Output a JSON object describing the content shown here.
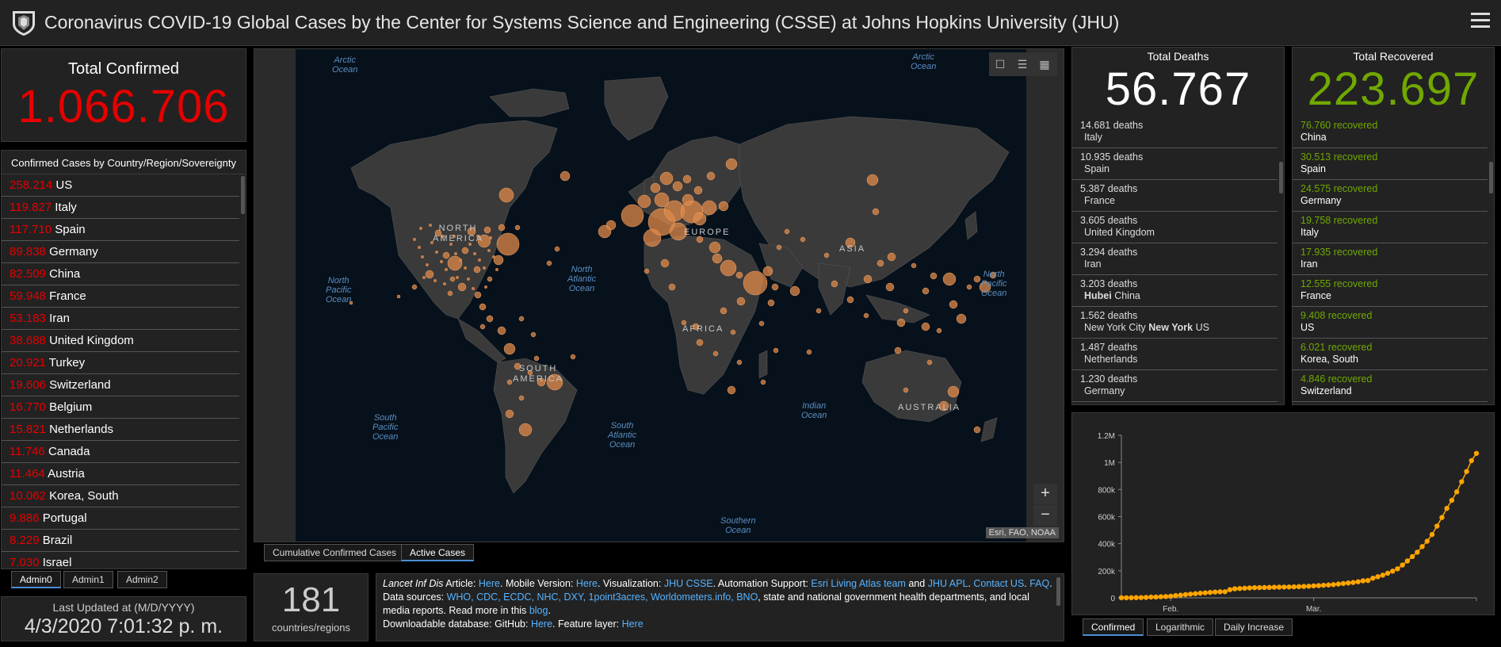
{
  "header": {
    "title": "Coronavirus COVID-19 Global Cases by the Center for Systems Science and Engineering (CSSE) at Johns Hopkins University (JHU)"
  },
  "total_confirmed": {
    "label": "Total Confirmed",
    "value": "1.066.706"
  },
  "confirmed_list": {
    "header": "Confirmed Cases by Country/Region/Sovereignty",
    "rows": [
      {
        "count": "258.214",
        "name": "US"
      },
      {
        "count": "119.827",
        "name": "Italy"
      },
      {
        "count": "117.710",
        "name": "Spain"
      },
      {
        "count": "89.838",
        "name": "Germany"
      },
      {
        "count": "82.509",
        "name": "China"
      },
      {
        "count": "59.948",
        "name": "France"
      },
      {
        "count": "53.183",
        "name": "Iran"
      },
      {
        "count": "38.688",
        "name": "United Kingdom"
      },
      {
        "count": "20.921",
        "name": "Turkey"
      },
      {
        "count": "19.606",
        "name": "Switzerland"
      },
      {
        "count": "16.770",
        "name": "Belgium"
      },
      {
        "count": "15.821",
        "name": "Netherlands"
      },
      {
        "count": "11.746",
        "name": "Canada"
      },
      {
        "count": "11.464",
        "name": "Austria"
      },
      {
        "count": "10.062",
        "name": "Korea, South"
      },
      {
        "count": "9.886",
        "name": "Portugal"
      },
      {
        "count": "8.229",
        "name": "Brazil"
      },
      {
        "count": "7.030",
        "name": "Israel"
      }
    ]
  },
  "admin_tabs": [
    "Admin0",
    "Admin1",
    "Admin2"
  ],
  "last_updated": {
    "label": "Last Updated at (M/D/YYYY)",
    "value": "4/3/2020 7:01:32 p. m."
  },
  "map": {
    "oceans": {
      "arctic_left": "Arctic\nOcean",
      "arctic_right": "Arctic\nOcean",
      "north_pacific_left": "North\nPacific\nOcean",
      "north_atlantic": "North\nAtlantic\nOcean",
      "north_pacific_right": "North\nPacific\nOcean",
      "south_pacific": "South\nPacific\nOcean",
      "south_atlantic": "South\nAtlantic\nOcean",
      "indian": "Indian\nOcean",
      "southern": "Southern\nOcean"
    },
    "continents": {
      "north_america": "NORTH\nAMERICA",
      "europe": "EUROPE",
      "asia": "ASIA",
      "africa": "AFRICA",
      "south_america": "SOUTH\nAMERICA",
      "australia": "AUSTRALIA"
    },
    "tools": [
      "bookmark-icon",
      "list-icon",
      "qr-icon"
    ],
    "zoom_in": "+",
    "zoom_out": "−",
    "attribution": "Esri, FAO, NOAA",
    "tabs": [
      "Cumulative Confirmed Cases",
      "Active Cases"
    ],
    "bubble_color": "#e08a4a"
  },
  "countries_count": {
    "value": "181",
    "label": "countries/regions"
  },
  "info": {
    "lancet": "Lancet Inf Dis",
    "article": " Article: ",
    "here1": "Here",
    "mobile": ". Mobile Version: ",
    "here2": "Here",
    "viz": ". Visualization: ",
    "jhu_csse": "JHU CSSE",
    "auto": ". Automation Support: ",
    "esri": "Esri Living Atlas team",
    "and": " and ",
    "jhu_apl": "JHU APL",
    "dot": ". ",
    "contact": "Contact US",
    "dot2": ". ",
    "faq": "FAQ",
    "dot3": ".",
    "sources_label": "Data sources: ",
    "sources": "WHO, CDC, ECDC, NHC, DXY, 1point3acres, Worldometers.info, BNO",
    "sources_rest": ", state and national government health departments, and local media reports.  Read more in this ",
    "blog": "blog",
    "dot4": ".",
    "download": "Downloadable database: GitHub: ",
    "here3": "Here",
    "feature": ". Feature layer: ",
    "here4": "Here"
  },
  "deaths": {
    "label": "Total Deaths",
    "value": "56.767",
    "rows": [
      {
        "top": "14.681 deaths",
        "bot": "Italy"
      },
      {
        "top": "10.935 deaths",
        "bot": "Spain"
      },
      {
        "top": "5.387 deaths",
        "bot": "France"
      },
      {
        "top": "3.605 deaths",
        "bot": "United Kingdom"
      },
      {
        "top": "3.294 deaths",
        "bot": "Iran"
      },
      {
        "top": "3.203 deaths",
        "bot_bold": "Hubei",
        "bot_rest": " China"
      },
      {
        "top": "1.562 deaths",
        "bot_pre": "New York City ",
        "bot_bold": "New York",
        "bot_rest": " US"
      },
      {
        "top": "1.487 deaths",
        "bot": "Netherlands"
      },
      {
        "top": "1.230 deaths",
        "bot": "Germany"
      }
    ]
  },
  "recovered": {
    "label": "Total Recovered",
    "value": "223.697",
    "rows": [
      {
        "count": "76.760",
        "word": " recovered",
        "name": "China"
      },
      {
        "count": "30.513",
        "word": " recovered",
        "name": "Spain"
      },
      {
        "count": "24.575",
        "word": " recovered",
        "name": "Germany"
      },
      {
        "count": "19.758",
        "word": " recovered",
        "name": "Italy"
      },
      {
        "count": "17.935",
        "word": " recovered",
        "name": "Iran"
      },
      {
        "count": "12.555",
        "word": " recovered",
        "name": "France"
      },
      {
        "count": "9.408",
        "word": " recovered",
        "name": "US"
      },
      {
        "count": "6.021",
        "word": " recovered",
        "name": "Korea, South"
      },
      {
        "count": "4.846",
        "word": " recovered",
        "name": "Switzerland"
      }
    ]
  },
  "chart_tabs": [
    "Confirmed",
    "Logarithmic",
    "Daily Increase"
  ],
  "chart_data": {
    "type": "line",
    "title": "",
    "xlabel": "",
    "ylabel": "",
    "y_ticks": [
      "0",
      "200k",
      "400k",
      "600k",
      "800k",
      "1M",
      "1.2M"
    ],
    "x_ticks": [
      {
        "label": "Feb.",
        "day": 10
      },
      {
        "label": "Mar.",
        "day": 39
      }
    ],
    "ylim": [
      0,
      1200000
    ],
    "color": "#ffa500",
    "x": [
      0,
      1,
      2,
      3,
      4,
      5,
      6,
      7,
      8,
      9,
      10,
      11,
      12,
      13,
      14,
      15,
      16,
      17,
      18,
      19,
      20,
      21,
      22,
      23,
      24,
      25,
      26,
      27,
      28,
      29,
      30,
      31,
      32,
      33,
      34,
      35,
      36,
      37,
      38,
      39,
      40,
      41,
      42,
      43,
      44,
      45,
      46,
      47,
      48,
      49,
      50,
      51,
      52,
      53,
      54,
      55,
      56,
      57,
      58,
      59,
      60,
      61,
      62,
      63,
      64,
      65,
      66,
      67,
      68,
      69,
      70,
      71,
      72
    ],
    "values": [
      555,
      654,
      941,
      1434,
      2118,
      2927,
      5578,
      6166,
      8234,
      9927,
      12038,
      16787,
      19881,
      23892,
      27635,
      30794,
      34391,
      37120,
      40150,
      42762,
      44802,
      45221,
      60368,
      66885,
      69030,
      71224,
      73258,
      75136,
      75639,
      76197,
      76819,
      78572,
      78958,
      79561,
      80406,
      81388,
      82746,
      84112,
      86011,
      88369,
      90306,
      92840,
      95120,
      97886,
      101801,
      105847,
      109821,
      113590,
      118620,
      125875,
      128352,
      145205,
      156101,
      167454,
      181574,
      197102,
      214821,
      242570,
      272208,
      304507,
      336953,
      378235,
      418045,
      467653,
      529591,
      593291,
      660706,
      720117,
      782365,
      857487,
      932605,
      1013157,
      1066706
    ]
  }
}
